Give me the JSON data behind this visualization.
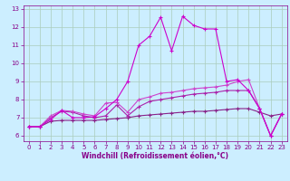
{
  "xlabel": "Windchill (Refroidissement éolien,°C)",
  "bg_color": "#cceeff",
  "grid_color": "#aaccbb",
  "x": [
    0,
    1,
    2,
    3,
    4,
    5,
    6,
    7,
    8,
    9,
    10,
    11,
    12,
    13,
    14,
    15,
    16,
    17,
    18,
    19,
    20,
    21,
    22,
    23
  ],
  "line1": [
    6.5,
    6.5,
    6.8,
    6.85,
    6.85,
    6.85,
    6.85,
    6.9,
    6.95,
    7.0,
    7.1,
    7.15,
    7.2,
    7.25,
    7.3,
    7.35,
    7.35,
    7.4,
    7.45,
    7.5,
    7.5,
    7.3,
    7.1,
    7.2
  ],
  "line2": [
    6.5,
    6.5,
    7.0,
    7.35,
    7.3,
    7.1,
    7.0,
    7.1,
    7.7,
    7.1,
    7.6,
    7.9,
    8.0,
    8.1,
    8.2,
    8.3,
    8.35,
    8.4,
    8.5,
    8.5,
    8.5,
    7.5,
    6.0,
    7.2
  ],
  "line3": [
    6.5,
    6.5,
    7.1,
    7.4,
    7.35,
    7.2,
    7.1,
    7.8,
    7.85,
    7.3,
    8.0,
    8.15,
    8.35,
    8.4,
    8.5,
    8.6,
    8.65,
    8.7,
    8.8,
    9.0,
    9.1,
    7.5,
    6.0,
    7.2
  ],
  "line4": [
    6.5,
    6.5,
    6.9,
    7.4,
    7.0,
    7.0,
    7.05,
    7.5,
    8.0,
    9.0,
    11.0,
    11.5,
    12.55,
    10.7,
    12.6,
    12.1,
    11.9,
    11.9,
    9.0,
    9.1,
    8.5,
    7.5,
    6.0,
    7.2
  ],
  "color1": "#882288",
  "color2": "#aa22aa",
  "color3": "#cc44cc",
  "color4": "#cc00cc",
  "xlim": [
    -0.5,
    23.5
  ],
  "ylim": [
    5.7,
    13.2
  ],
  "xticks": [
    0,
    1,
    2,
    3,
    4,
    5,
    6,
    7,
    8,
    9,
    10,
    11,
    12,
    13,
    14,
    15,
    16,
    17,
    18,
    19,
    20,
    21,
    22,
    23
  ],
  "yticks": [
    6,
    7,
    8,
    9,
    10,
    11,
    12,
    13
  ],
  "marker": "+",
  "markersize": 3,
  "linewidth": 0.8,
  "xlabel_fontsize": 5.5,
  "tick_fontsize": 5,
  "label_color": "#880088"
}
